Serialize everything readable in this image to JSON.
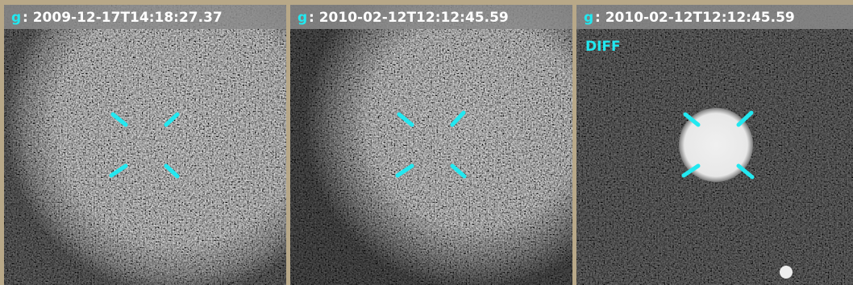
{
  "panels": [
    {
      "filter": "g",
      "timestamp": ": 2009-12-17T14:18:27.37"
    },
    {
      "filter": "g",
      "timestamp": ": 2010-02-12T12:12:45.59"
    },
    {
      "filter": "g",
      "timestamp": ": 2010-02-12T12:12:45.59",
      "label": "DIFF"
    }
  ]
}
